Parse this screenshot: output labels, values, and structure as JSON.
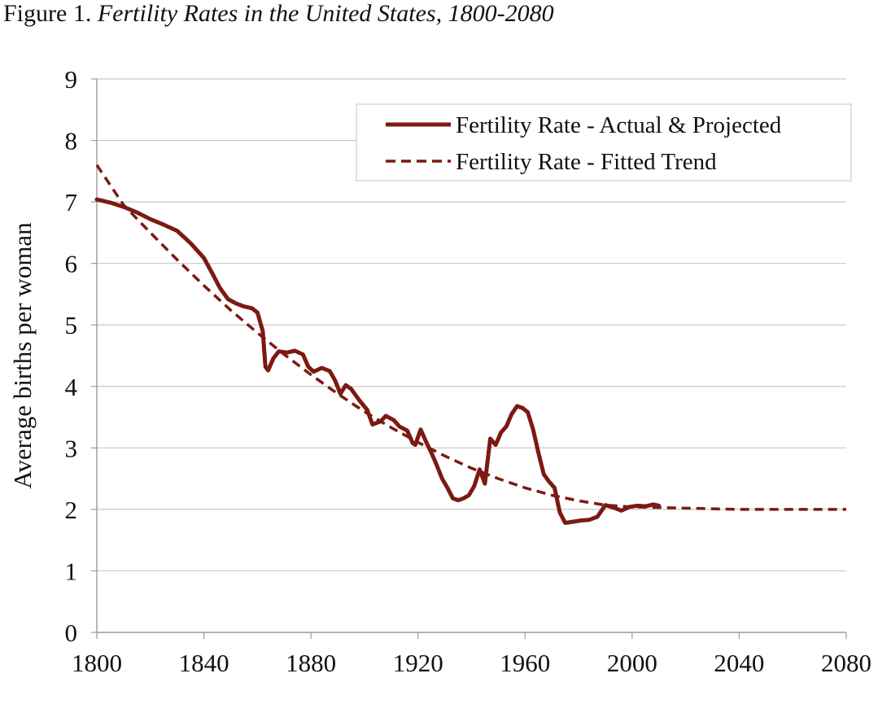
{
  "figure": {
    "label": "Figure 1.",
    "title": "Fertility Rates in the United States, 1800-2080"
  },
  "chart_data": {
    "type": "line",
    "title": "Fertility Rates in the United States, 1800-2080",
    "xlabel": "",
    "ylabel": "Average births per woman",
    "xlim": [
      1800,
      2080
    ],
    "ylim": [
      0,
      9
    ],
    "x_ticks": [
      1800,
      1840,
      1880,
      1920,
      1960,
      2000,
      2040,
      2080
    ],
    "y_ticks": [
      0,
      1,
      2,
      3,
      4,
      5,
      6,
      7,
      8,
      9
    ],
    "grid": "horizontal",
    "legend_position": "top-right",
    "colors": {
      "series": "#7b1a12",
      "grid": "#c8c8c8",
      "axis": "#9a9a9a"
    },
    "series": [
      {
        "name": "Fertility Rate - Actual & Projected",
        "style": "solid",
        "points": [
          [
            1800,
            7.04
          ],
          [
            1805,
            6.99
          ],
          [
            1810,
            6.92
          ],
          [
            1815,
            6.83
          ],
          [
            1820,
            6.72
          ],
          [
            1825,
            6.63
          ],
          [
            1830,
            6.53
          ],
          [
            1835,
            6.33
          ],
          [
            1840,
            6.09
          ],
          [
            1843,
            5.85
          ],
          [
            1846,
            5.6
          ],
          [
            1849,
            5.42
          ],
          [
            1852,
            5.35
          ],
          [
            1855,
            5.3
          ],
          [
            1858,
            5.27
          ],
          [
            1860,
            5.2
          ],
          [
            1862,
            4.9
          ],
          [
            1863,
            4.32
          ],
          [
            1864,
            4.26
          ],
          [
            1866,
            4.46
          ],
          [
            1868,
            4.57
          ],
          [
            1871,
            4.55
          ],
          [
            1874,
            4.58
          ],
          [
            1877,
            4.52
          ],
          [
            1879,
            4.32
          ],
          [
            1881,
            4.24
          ],
          [
            1884,
            4.3
          ],
          [
            1887,
            4.25
          ],
          [
            1889,
            4.1
          ],
          [
            1891,
            3.88
          ],
          [
            1893,
            4.02
          ],
          [
            1895,
            3.96
          ],
          [
            1898,
            3.78
          ],
          [
            1901,
            3.62
          ],
          [
            1903,
            3.38
          ],
          [
            1906,
            3.43
          ],
          [
            1908,
            3.52
          ],
          [
            1911,
            3.45
          ],
          [
            1913,
            3.35
          ],
          [
            1916,
            3.28
          ],
          [
            1918,
            3.08
          ],
          [
            1919,
            3.05
          ],
          [
            1921,
            3.3
          ],
          [
            1923,
            3.1
          ],
          [
            1925,
            2.92
          ],
          [
            1927,
            2.72
          ],
          [
            1929,
            2.5
          ],
          [
            1931,
            2.35
          ],
          [
            1933,
            2.18
          ],
          [
            1935,
            2.15
          ],
          [
            1937,
            2.18
          ],
          [
            1939,
            2.23
          ],
          [
            1941,
            2.38
          ],
          [
            1943,
            2.65
          ],
          [
            1945,
            2.42
          ],
          [
            1947,
            3.15
          ],
          [
            1949,
            3.05
          ],
          [
            1951,
            3.25
          ],
          [
            1953,
            3.35
          ],
          [
            1955,
            3.55
          ],
          [
            1957,
            3.68
          ],
          [
            1959,
            3.65
          ],
          [
            1961,
            3.58
          ],
          [
            1963,
            3.3
          ],
          [
            1965,
            2.92
          ],
          [
            1967,
            2.57
          ],
          [
            1969,
            2.45
          ],
          [
            1971,
            2.35
          ],
          [
            1973,
            1.95
          ],
          [
            1975,
            1.78
          ],
          [
            1978,
            1.8
          ],
          [
            1981,
            1.82
          ],
          [
            1984,
            1.83
          ],
          [
            1987,
            1.88
          ],
          [
            1990,
            2.07
          ],
          [
            1993,
            2.03
          ],
          [
            1996,
            1.98
          ],
          [
            1999,
            2.04
          ],
          [
            2002,
            2.06
          ],
          [
            2005,
            2.05
          ],
          [
            2008,
            2.08
          ],
          [
            2010,
            2.06
          ]
        ]
      },
      {
        "name": "Fertility Rate - Fitted Trend",
        "style": "dashed",
        "points": [
          [
            1800,
            7.6
          ],
          [
            1810,
            6.95
          ],
          [
            1820,
            6.5
          ],
          [
            1830,
            6.06
          ],
          [
            1840,
            5.64
          ],
          [
            1850,
            5.24
          ],
          [
            1860,
            4.87
          ],
          [
            1870,
            4.52
          ],
          [
            1880,
            4.19
          ],
          [
            1890,
            3.88
          ],
          [
            1900,
            3.59
          ],
          [
            1910,
            3.33
          ],
          [
            1920,
            3.09
          ],
          [
            1930,
            2.87
          ],
          [
            1940,
            2.67
          ],
          [
            1950,
            2.5
          ],
          [
            1960,
            2.35
          ],
          [
            1970,
            2.23
          ],
          [
            1980,
            2.14
          ],
          [
            1990,
            2.07
          ],
          [
            2000,
            2.04
          ],
          [
            2010,
            2.03
          ],
          [
            2020,
            2.02
          ],
          [
            2030,
            2.01
          ],
          [
            2040,
            2.0
          ],
          [
            2050,
            2.0
          ],
          [
            2060,
            2.0
          ],
          [
            2070,
            2.0
          ],
          [
            2080,
            2.0
          ]
        ]
      }
    ]
  }
}
